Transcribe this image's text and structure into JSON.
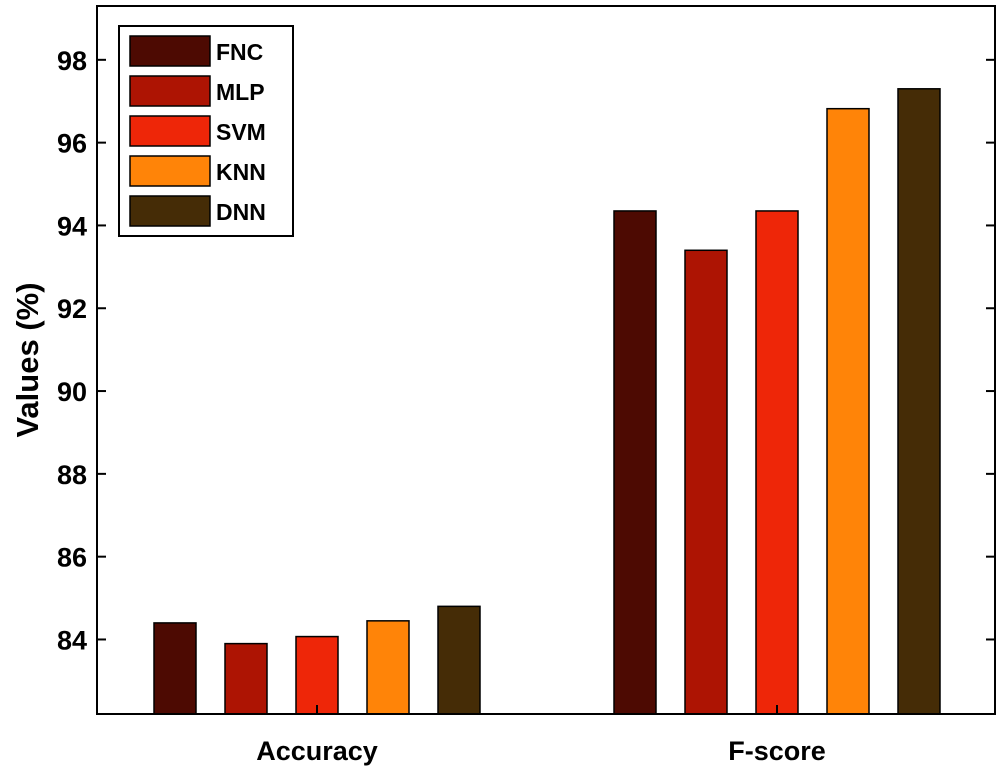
{
  "chart_data": {
    "type": "bar",
    "title": "",
    "xlabel": "",
    "ylabel": "Values (%)",
    "categories": [
      "Accuracy",
      "F-score"
    ],
    "ylim": [
      82.2,
      99.3
    ],
    "yticks": [
      84,
      86,
      88,
      90,
      92,
      94,
      96,
      98
    ],
    "grid": false,
    "legend_position": "top-left",
    "series": [
      {
        "name": "FNC",
        "color": "#4d0a02",
        "values": [
          84.4,
          94.35
        ]
      },
      {
        "name": "MLP",
        "color": "#ad1403",
        "values": [
          83.9,
          93.4
        ]
      },
      {
        "name": "SVM",
        "color": "#ee2608",
        "values": [
          84.07,
          94.35
        ]
      },
      {
        "name": "KNN",
        "color": "#ff8408",
        "values": [
          84.45,
          96.82
        ]
      },
      {
        "name": "DNN",
        "color": "#452c06",
        "values": [
          84.8,
          97.3
        ]
      }
    ]
  }
}
